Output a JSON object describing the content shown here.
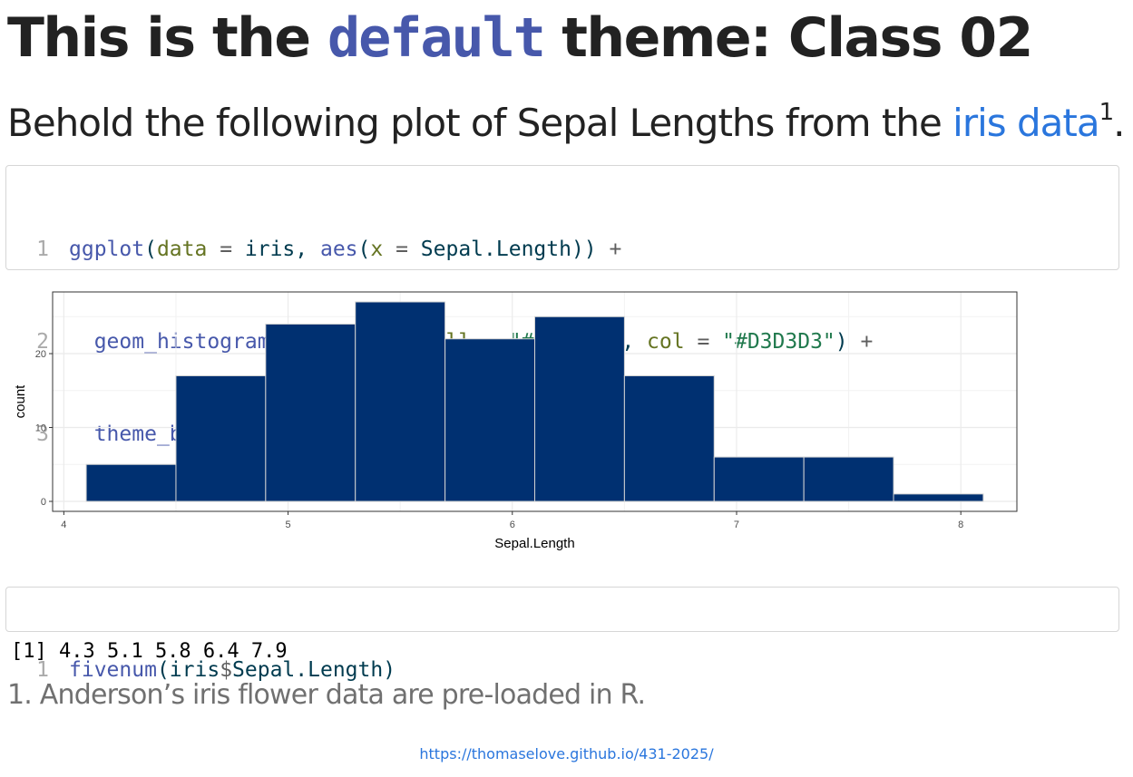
{
  "heading": {
    "prefix": "This is the ",
    "code": "default",
    "suffix": " theme: Class 02"
  },
  "intro": {
    "prefix": "Behold the following plot of Sepal Lengths from the ",
    "link": "iris data",
    "footnote_ref": "1",
    "suffix": "."
  },
  "code_block_1": {
    "lines": [
      {
        "number": "1",
        "text": "ggplot(data = iris, aes(x = Sepal.Length)) +"
      },
      {
        "number": "2",
        "text": "  geom_histogram(bins = 10, fill = \"#003071\", col = \"#D3D3D3\") +"
      },
      {
        "number": "3",
        "text": "  theme_bw()"
      }
    ]
  },
  "code_block_2": {
    "lines": [
      {
        "number": "1",
        "text": "fivenum(iris$Sepal.Length)"
      }
    ]
  },
  "output": "[1] 4.3 5.1 5.8 6.4 7.9",
  "footnote": "1. Anderson’s iris flower data are pre-loaded in R.",
  "footer_url": "https://thomaselove.github.io/431-2025/",
  "colors": {
    "bar_fill": "#003071",
    "bar_outline": "#D3D3D3",
    "link": "#2a76dd",
    "code_function": "#4758ab"
  },
  "chart_data": {
    "type": "bar",
    "subtype": "histogram",
    "bin_edges": [
      4.1,
      4.5,
      4.9,
      5.3,
      5.7,
      6.1,
      6.5,
      6.9,
      7.3,
      7.7,
      8.1
    ],
    "values": [
      5,
      17,
      24,
      27,
      22,
      25,
      17,
      6,
      6,
      1
    ],
    "xlabel": "Sepal.Length",
    "ylabel": "count",
    "xlim": [
      3.95,
      8.25
    ],
    "ylim": [
      -1.35,
      28.35
    ],
    "x_ticks": [
      4,
      5,
      6,
      7,
      8
    ],
    "x_tick_labels": [
      "4",
      "5",
      "6",
      "7",
      "8"
    ],
    "y_ticks": [
      0,
      10,
      20
    ],
    "y_tick_labels": [
      "0",
      "10",
      "20"
    ],
    "grid": true,
    "theme": "theme_bw"
  }
}
